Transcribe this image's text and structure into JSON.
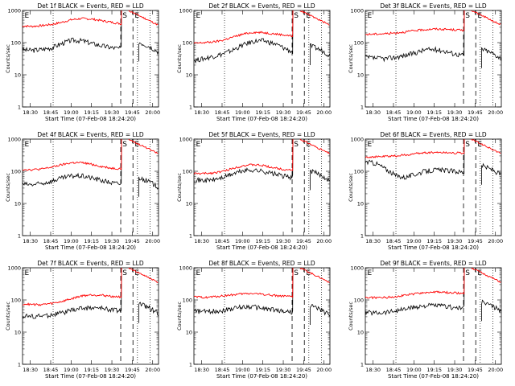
{
  "colors": {
    "events": "#000000",
    "lld": "#ff0000",
    "axis": "#000000",
    "background": "#ffffff"
  },
  "chart_data": [
    {
      "type": "line",
      "title": "Det 1f BLACK = Events, RED = LLD",
      "xlabel": "Start Time (07-Feb-08 18:24:20)",
      "ylabel": "Counts/sec",
      "xticks": [
        "18:30",
        "18:45",
        "19:00",
        "19:15",
        "19:30",
        "19:45",
        "20:00"
      ],
      "yticks": [
        "1",
        "10",
        "100",
        "1000"
      ],
      "ylog": true,
      "ylim": [
        1,
        1000
      ],
      "markers": [
        "E",
        "S",
        "E"
      ],
      "events_level": [
        60,
        58,
        62,
        70,
        95,
        120,
        115,
        95,
        80,
        70,
        65
      ],
      "lld_level": [
        330,
        320,
        340,
        370,
        430,
        520,
        560,
        540,
        480,
        430,
        380
      ]
    },
    {
      "type": "line",
      "title": "Det 2f BLACK = Events, RED = LLD",
      "xlabel": "Start Time (07-Feb-08 18:24:20)",
      "ylabel": "Counts/sec",
      "xticks": [
        "18:30",
        "18:45",
        "19:00",
        "19:15",
        "19:30",
        "19:45",
        "20:00"
      ],
      "yticks": [
        "1",
        "10",
        "100",
        "1000"
      ],
      "ylog": true,
      "ylim": [
        1,
        1000
      ],
      "markers": [
        "E",
        "S",
        "E"
      ],
      "events_level": [
        28,
        32,
        38,
        45,
        60,
        85,
        110,
        115,
        95,
        70,
        50
      ],
      "lld_level": [
        95,
        100,
        105,
        120,
        150,
        185,
        210,
        205,
        190,
        175,
        160
      ]
    },
    {
      "type": "line",
      "title": "Det 3f BLACK = Events, RED = LLD",
      "xlabel": "Start Time (07-Feb-08 18:24:20)",
      "ylabel": "Counts/sec",
      "xticks": [
        "18:30",
        "18:45",
        "19:00",
        "19:15",
        "19:30",
        "19:45",
        "20:00"
      ],
      "yticks": [
        "1",
        "10",
        "100",
        "1000"
      ],
      "ylog": true,
      "ylim": [
        1,
        1000
      ],
      "markers": [
        "E",
        "S",
        "E"
      ],
      "events_level": [
        35,
        33,
        32,
        35,
        40,
        48,
        60,
        62,
        55,
        45,
        40
      ],
      "lld_level": [
        180,
        185,
        190,
        200,
        215,
        235,
        255,
        265,
        260,
        250,
        245
      ]
    },
    {
      "type": "line",
      "title": "Det 4f BLACK = Events, RED = LLD",
      "xlabel": "Start Time (07-Feb-08 18:24:20)",
      "ylabel": "Counts/sec",
      "xticks": [
        "18:30",
        "18:45",
        "19:00",
        "19:15",
        "19:30",
        "19:45",
        "20:00"
      ],
      "yticks": [
        "1",
        "10",
        "100",
        "1000"
      ],
      "ylog": true,
      "ylim": [
        1,
        1000
      ],
      "markers": [
        "E",
        "S",
        "E"
      ],
      "events_level": [
        40,
        38,
        42,
        50,
        62,
        72,
        72,
        62,
        52,
        44,
        40
      ],
      "lld_level": [
        115,
        112,
        118,
        135,
        160,
        185,
        185,
        165,
        140,
        125,
        120
      ]
    },
    {
      "type": "line",
      "title": "Det 5f BLACK = Events, RED = LLD",
      "xlabel": "Start Time (07-Feb-08 18:24:20)",
      "ylabel": "Counts/sec",
      "xticks": [
        "18:30",
        "18:45",
        "19:00",
        "19:15",
        "19:30",
        "19:45",
        "20:00"
      ],
      "yticks": [
        "1",
        "10",
        "100",
        "1000"
      ],
      "ylog": true,
      "ylim": [
        1,
        1000
      ],
      "markers": [
        "E",
        "S",
        "E"
      ],
      "events_level": [
        55,
        52,
        55,
        65,
        85,
        105,
        110,
        100,
        85,
        72,
        65
      ],
      "lld_level": [
        85,
        85,
        90,
        100,
        125,
        150,
        160,
        150,
        130,
        115,
        110
      ]
    },
    {
      "type": "line",
      "title": "Det 6f BLACK = Events, RED = LLD",
      "xlabel": "Start Time (07-Feb-08 18:24:20)",
      "ylabel": "Counts/sec",
      "xticks": [
        "18:30",
        "18:45",
        "19:00",
        "19:15",
        "19:30",
        "19:45",
        "20:00"
      ],
      "yticks": [
        "1",
        "10",
        "100",
        "1000"
      ],
      "ylog": true,
      "ylim": [
        1,
        1000
      ],
      "markers": [
        "E",
        "S",
        "E"
      ],
      "events_level": [
        200,
        180,
        120,
        75,
        65,
        80,
        100,
        110,
        108,
        100,
        95
      ],
      "lld_level": [
        280,
        280,
        290,
        300,
        320,
        350,
        380,
        390,
        385,
        375,
        370
      ]
    },
    {
      "type": "line",
      "title": "Det 7f BLACK = Events, RED = LLD",
      "xlabel": "Start Time (07-Feb-08 18:24:20)",
      "ylabel": "Counts/sec",
      "xticks": [
        "18:30",
        "18:45",
        "19:00",
        "19:15",
        "19:30",
        "19:45",
        "20:00"
      ],
      "yticks": [
        "1",
        "10",
        "100",
        "1000"
      ],
      "ylog": true,
      "ylim": [
        1,
        1000
      ],
      "markers": [
        "E",
        "S",
        "E"
      ],
      "events_level": [
        32,
        31,
        32,
        35,
        40,
        48,
        56,
        58,
        55,
        50,
        48
      ],
      "lld_level": [
        75,
        72,
        72,
        78,
        90,
        110,
        135,
        145,
        140,
        130,
        125
      ]
    },
    {
      "type": "line",
      "title": "Det 8f BLACK = Events, RED = LLD",
      "xlabel": "Start Time (07-Feb-08 18:24:20)",
      "ylabel": "Counts/sec",
      "xticks": [
        "18:30",
        "18:45",
        "19:00",
        "19:15",
        "19:30",
        "19:45",
        "20:00"
      ],
      "yticks": [
        "1",
        "10",
        "100",
        "1000"
      ],
      "ylog": true,
      "ylim": [
        1,
        1000
      ],
      "markers": [
        "E",
        "S",
        "E"
      ],
      "events_level": [
        45,
        44,
        45,
        48,
        55,
        62,
        62,
        55,
        50,
        45,
        42
      ],
      "lld_level": [
        125,
        120,
        125,
        135,
        145,
        155,
        160,
        150,
        140,
        130,
        125
      ]
    },
    {
      "type": "line",
      "title": "Det 9f BLACK = Events, RED = LLD",
      "xlabel": "Start Time (07-Feb-08 18:24:20)",
      "ylabel": "Counts/sec",
      "xticks": [
        "18:30",
        "18:45",
        "19:00",
        "19:15",
        "19:30",
        "19:45",
        "20:00"
      ],
      "yticks": [
        "1",
        "10",
        "100",
        "1000"
      ],
      "ylog": true,
      "ylim": [
        1,
        1000
      ],
      "markers": [
        "E",
        "S",
        "E"
      ],
      "events_level": [
        42,
        40,
        42,
        46,
        52,
        60,
        66,
        68,
        64,
        58,
        55
      ],
      "lld_level": [
        120,
        118,
        120,
        128,
        140,
        155,
        170,
        175,
        172,
        165,
        160
      ]
    }
  ]
}
